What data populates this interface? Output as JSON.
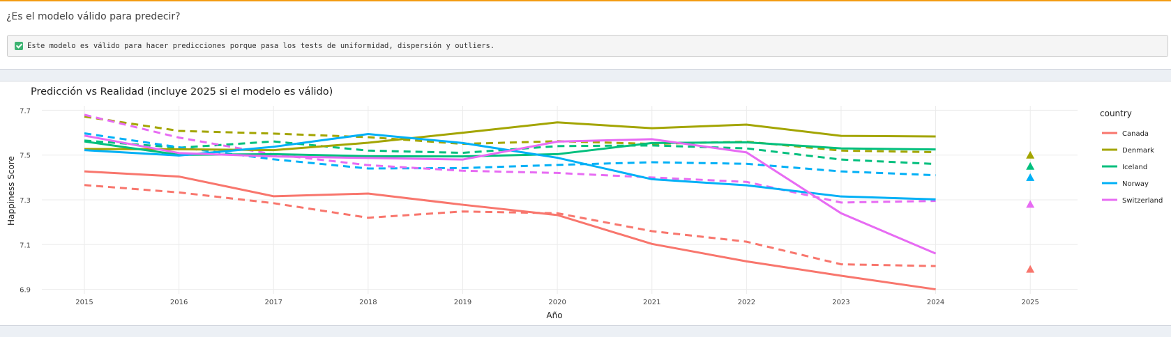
{
  "question": {
    "title": "¿Es el modelo válido para predecir?"
  },
  "verdict": {
    "icon": "check-icon",
    "text": "Este modelo es válido para hacer predicciones porque pasa los tests de uniformidad, dispersión y outliers."
  },
  "colors": {
    "accent": "#f39c12",
    "check": "#3cb371"
  },
  "chart_data": {
    "type": "line",
    "title": "Predicción vs Realidad (incluye 2025 si el modelo es válido)",
    "xlabel": "Año",
    "ylabel": "Happiness Score",
    "x": [
      2015,
      2016,
      2017,
      2018,
      2019,
      2020,
      2021,
      2022,
      2023,
      2024,
      2025
    ],
    "xticks": [
      "2015",
      "2016",
      "2017",
      "2018",
      "2019",
      "2020",
      "2021",
      "2022",
      "2023",
      "2024",
      "2025"
    ],
    "yticks": [
      "6.9",
      "7.1",
      "7.3",
      "7.5",
      "7.7"
    ],
    "ylim": [
      6.88,
      7.72
    ],
    "xlim": [
      2014.55,
      2025.5
    ],
    "legend_title": "country",
    "legend_position": "right",
    "grid": true,
    "series": [
      {
        "name": "Canada",
        "color": "#F8766D",
        "actual": [
          7.427,
          7.404,
          7.316,
          7.328,
          7.278,
          7.232,
          7.103,
          7.025,
          6.961,
          6.9
        ],
        "predicted": [
          7.366,
          7.333,
          7.285,
          7.22,
          7.248,
          7.24,
          7.16,
          7.113,
          7.012,
          7.004
        ],
        "forecast_2025": 6.99
      },
      {
        "name": "Denmark",
        "color": "#A3A500",
        "actual": [
          7.527,
          7.526,
          7.522,
          7.555,
          7.6,
          7.646,
          7.62,
          7.636,
          7.586,
          7.583
        ],
        "predicted": [
          7.672,
          7.608,
          7.596,
          7.58,
          7.55,
          7.562,
          7.55,
          7.56,
          7.52,
          7.513
        ],
        "forecast_2025": 7.5
      },
      {
        "name": "Iceland",
        "color": "#00BF7D",
        "actual": [
          7.561,
          7.501,
          7.504,
          7.495,
          7.494,
          7.504,
          7.554,
          7.557,
          7.53,
          7.525
        ],
        "predicted": [
          7.565,
          7.533,
          7.561,
          7.52,
          7.51,
          7.54,
          7.543,
          7.53,
          7.48,
          7.46
        ],
        "forecast_2025": 7.45
      },
      {
        "name": "Norway",
        "color": "#00B0F6",
        "actual": [
          7.522,
          7.498,
          7.537,
          7.594,
          7.554,
          7.488,
          7.392,
          7.365,
          7.315,
          7.302
        ],
        "predicted": [
          7.597,
          7.535,
          7.481,
          7.44,
          7.442,
          7.456,
          7.468,
          7.461,
          7.427,
          7.41
        ],
        "forecast_2025": 7.4
      },
      {
        "name": "Switzerland",
        "color": "#E76BF3",
        "actual": [
          7.587,
          7.509,
          7.494,
          7.487,
          7.48,
          7.56,
          7.571,
          7.512,
          7.24,
          7.06
        ],
        "predicted": [
          7.68,
          7.578,
          7.503,
          7.455,
          7.43,
          7.42,
          7.4,
          7.38,
          7.288,
          7.295
        ],
        "forecast_2025": 7.28
      }
    ]
  }
}
